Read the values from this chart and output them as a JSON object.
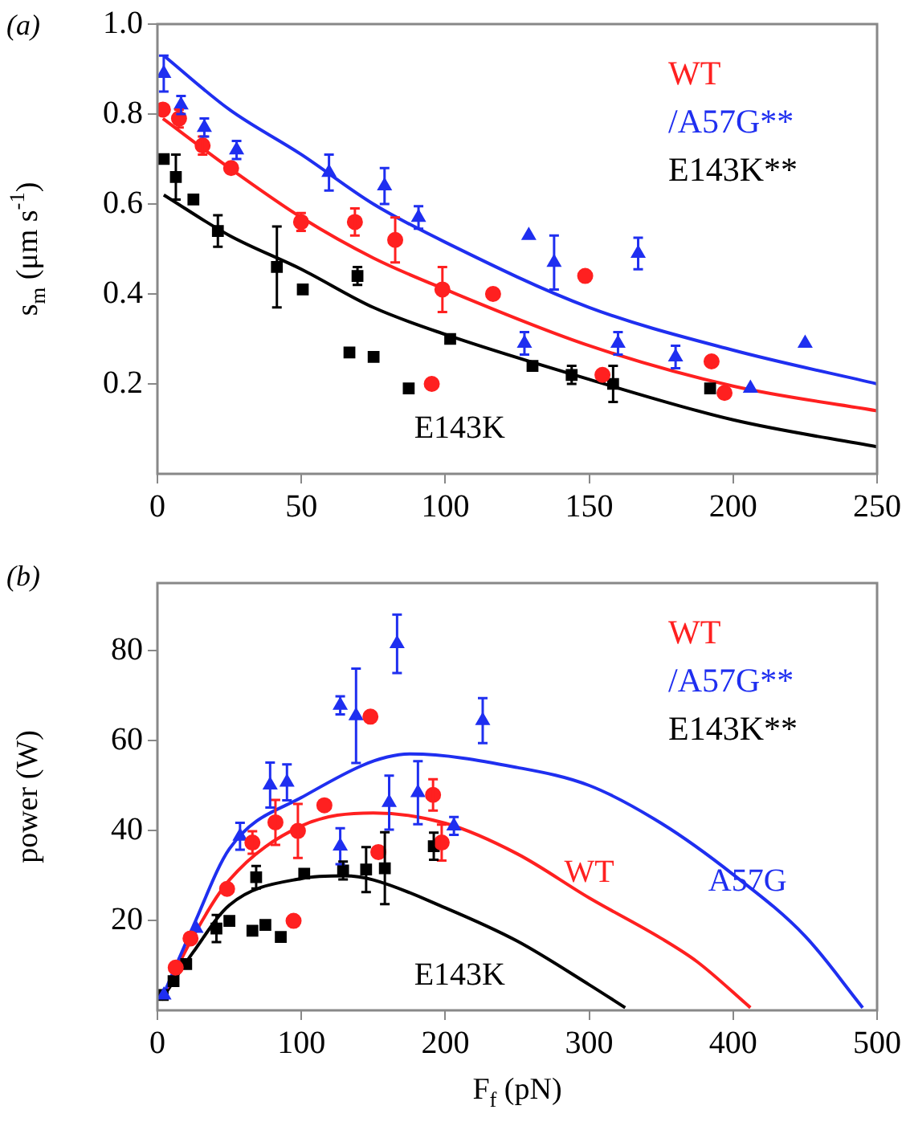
{
  "chart_data": [
    {
      "type": "scatter",
      "title": "(a)",
      "ylabel": "s$_{m}$ (μm s$^{-1}$)",
      "xlim": [
        0,
        250
      ],
      "ylim": [
        0,
        1
      ],
      "xticks": [
        0,
        50,
        100,
        150,
        200,
        250
      ],
      "yticks": [
        0.2,
        0.4,
        0.6,
        0.8,
        {
          "value": 1,
          "label": "1.0"
        }
      ],
      "legend": "top right",
      "grid": false,
      "series": [
        {
          "name": "WT",
          "type": "scatter",
          "marker": "circle",
          "color": "#ff2020",
          "x": [
            1.9,
            7.5,
            15.7,
            25.6,
            49.9,
            68.6,
            82.6,
            99,
            116.6,
            148.6,
            95.3,
            154.6,
            192.5,
            197
          ],
          "values": [
            0.81,
            0.79,
            0.73,
            0.68,
            0.56,
            0.56,
            0.52,
            0.41,
            0.4,
            0.44,
            0.2,
            0.22,
            0.25,
            0.18
          ],
          "errors": [
            null,
            0.02,
            0.02,
            null,
            0.02,
            0.03,
            0.05,
            0.05,
            null,
            null,
            null,
            null,
            null,
            null
          ]
        },
        {
          "name": "/A57G**",
          "type": "scatter",
          "marker": "triangle",
          "color": "#1f2ff0",
          "x": [
            2.2,
            8.2,
            16.3,
            27.5,
            59.6,
            78.9,
            90.7,
            129,
            137.8,
            167,
            127.5,
            160,
            180,
            206,
            225
          ],
          "values": [
            0.89,
            0.82,
            0.77,
            0.72,
            0.67,
            0.64,
            0.57,
            0.53,
            0.47,
            0.49,
            0.29,
            0.29,
            0.26,
            0.19,
            0.29
          ],
          "errors": [
            0.04,
            0.02,
            0.02,
            0.02,
            0.04,
            0.04,
            0.025,
            null,
            0.06,
            0.035,
            0.025,
            0.025,
            0.025,
            null,
            null
          ]
        },
        {
          "name": "E143K**",
          "type": "scatter",
          "marker": "square",
          "color": "#000000",
          "x": [
            2.2,
            6.4,
            12.5,
            21,
            41.5,
            50.5,
            69.5,
            66.7,
            75.1,
            87.3,
            101.7,
            130.3,
            143.9,
            158.3,
            192
          ],
          "values": [
            0.7,
            0.66,
            0.61,
            0.54,
            0.46,
            0.41,
            0.44,
            0.27,
            0.26,
            0.19,
            0.3,
            0.24,
            0.22,
            0.2,
            0.19
          ],
          "errors": [
            null,
            0.05,
            null,
            0.035,
            0.09,
            null,
            0.02,
            null,
            null,
            null,
            null,
            null,
            0.02,
            0.04,
            null
          ]
        },
        {
          "type": "line",
          "marker": "none",
          "color": "#1f2ff0",
          "x": [
            2.2,
            25,
            50,
            75,
            100,
            150,
            200,
            250
          ],
          "values": [
            0.93,
            0.81,
            0.71,
            0.6,
            0.515,
            0.37,
            0.275,
            0.2
          ]
        },
        {
          "type": "line",
          "marker": "none",
          "color": "#ff2020",
          "x": [
            1.9,
            25,
            50,
            75,
            100,
            150,
            200,
            250
          ],
          "values": [
            0.79,
            0.68,
            0.57,
            0.48,
            0.41,
            0.285,
            0.195,
            0.14
          ]
        },
        {
          "type": "line",
          "marker": "none",
          "color": "#000000",
          "x": [
            2.2,
            25,
            50,
            75,
            100,
            150,
            200,
            250
          ],
          "values": [
            0.62,
            0.53,
            0.455,
            0.37,
            0.31,
            0.21,
            0.12,
            0.06
          ]
        }
      ],
      "annotations": [
        "E143K"
      ]
    },
    {
      "type": "scatter",
      "title": "(b)",
      "ylabel": "power (W)",
      "xlabel": "F$_{f}$ (pN)",
      "xlim": [
        0,
        500
      ],
      "ylim": [
        0,
        95
      ],
      "xticks": [
        0,
        100,
        200,
        300,
        400,
        500
      ],
      "yticks": [
        20,
        40,
        60,
        80
      ],
      "legend": "top right",
      "grid": false,
      "series": [
        {
          "name": "WT",
          "type": "scatter",
          "marker": "circle",
          "color": "#ff2020",
          "x": [
            12.7,
            23,
            48.4,
            66,
            82,
            97.6,
            116,
            148,
            153.5,
            191.5,
            197.5,
            94.6
          ],
          "values": [
            9.5,
            16,
            27,
            37.3,
            41.8,
            39.9,
            45.6,
            65.3,
            35.2,
            47.9,
            37.3,
            19.9
          ],
          "errors": [
            null,
            null,
            null,
            2.5,
            5,
            6,
            null,
            null,
            null,
            3.5,
            4,
            null
          ]
        },
        {
          "name": "/A57G**",
          "type": "scatter",
          "marker": "triangle",
          "color": "#1f2ff0",
          "x": [
            4.5,
            26.8,
            57.4,
            78.3,
            90,
            127,
            138,
            166.5,
            127,
            161,
            181,
            206,
            226
          ],
          "values": [
            3.4,
            18.2,
            38.7,
            50.1,
            50.7,
            67.8,
            65.5,
            81.5,
            36.5,
            46.2,
            48.4,
            41,
            64.4
          ],
          "errors": [
            null,
            null,
            3,
            5,
            4,
            2,
            10.5,
            6.5,
            4,
            6,
            7,
            2,
            5
          ]
        },
        {
          "name": "E143K**",
          "type": "scatter",
          "marker": "square",
          "color": "#000000",
          "x": [
            3.7,
            11.2,
            20,
            41,
            50,
            68.6,
            66,
            75,
            85.7,
            102,
            129,
            145,
            158,
            192
          ],
          "values": [
            3.4,
            6.5,
            10.3,
            18.2,
            19.9,
            29.6,
            17.7,
            19,
            16.3,
            30.4,
            31.1,
            31.3,
            31.6,
            36.5
          ],
          "errors": [
            null,
            null,
            null,
            3,
            null,
            2.5,
            null,
            null,
            null,
            null,
            2,
            5,
            8,
            3
          ]
        },
        {
          "type": "line",
          "marker": "none",
          "color": "#1f2ff0",
          "x": [
            2.6,
            25,
            50,
            100,
            176,
            250,
            300,
            350,
            400,
            450,
            490
          ],
          "values": [
            2.3,
            18.8,
            35.9,
            47.3,
            57,
            54,
            50,
            41.6,
            30.2,
            16.5,
            0.6
          ]
        },
        {
          "type": "line",
          "marker": "none",
          "color": "#ff2020",
          "x": [
            2.6,
            25,
            50,
            100,
            150,
            200,
            250,
            300,
            350,
            375,
            412
          ],
          "values": [
            2.3,
            16.5,
            29,
            41,
            43.9,
            41.6,
            34.8,
            25,
            16,
            10.8,
            0.6
          ]
        },
        {
          "type": "line",
          "marker": "none",
          "color": "#000000",
          "x": [
            2.6,
            25,
            50,
            100,
            130,
            150,
            200,
            250,
            300,
            325
          ],
          "values": [
            2.3,
            13,
            23.4,
            29.3,
            29.9,
            29,
            22.8,
            15.4,
            5.7,
            0.6
          ]
        }
      ],
      "annotations": [
        "WT",
        "A57G",
        "E143K"
      ]
    }
  ]
}
